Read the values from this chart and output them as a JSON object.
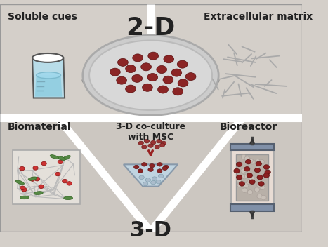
{
  "bg_color": "#d4cfc9",
  "title_2d": "2-D",
  "title_3d": "3-D",
  "label_soluble": "Soluble cues",
  "label_ecm": "Extracellular matrix",
  "label_biomaterial": "Biomaterial",
  "label_coculture": "3-D co-culture\nwith MSC",
  "label_bioreactor": "Bioreactor",
  "cell_color": "#8b2525",
  "cell_edge": "#5a1010",
  "label_fontsize": 10,
  "title_fontsize": 26,
  "subtitle_fontsize": 22,
  "white_lw": 7
}
